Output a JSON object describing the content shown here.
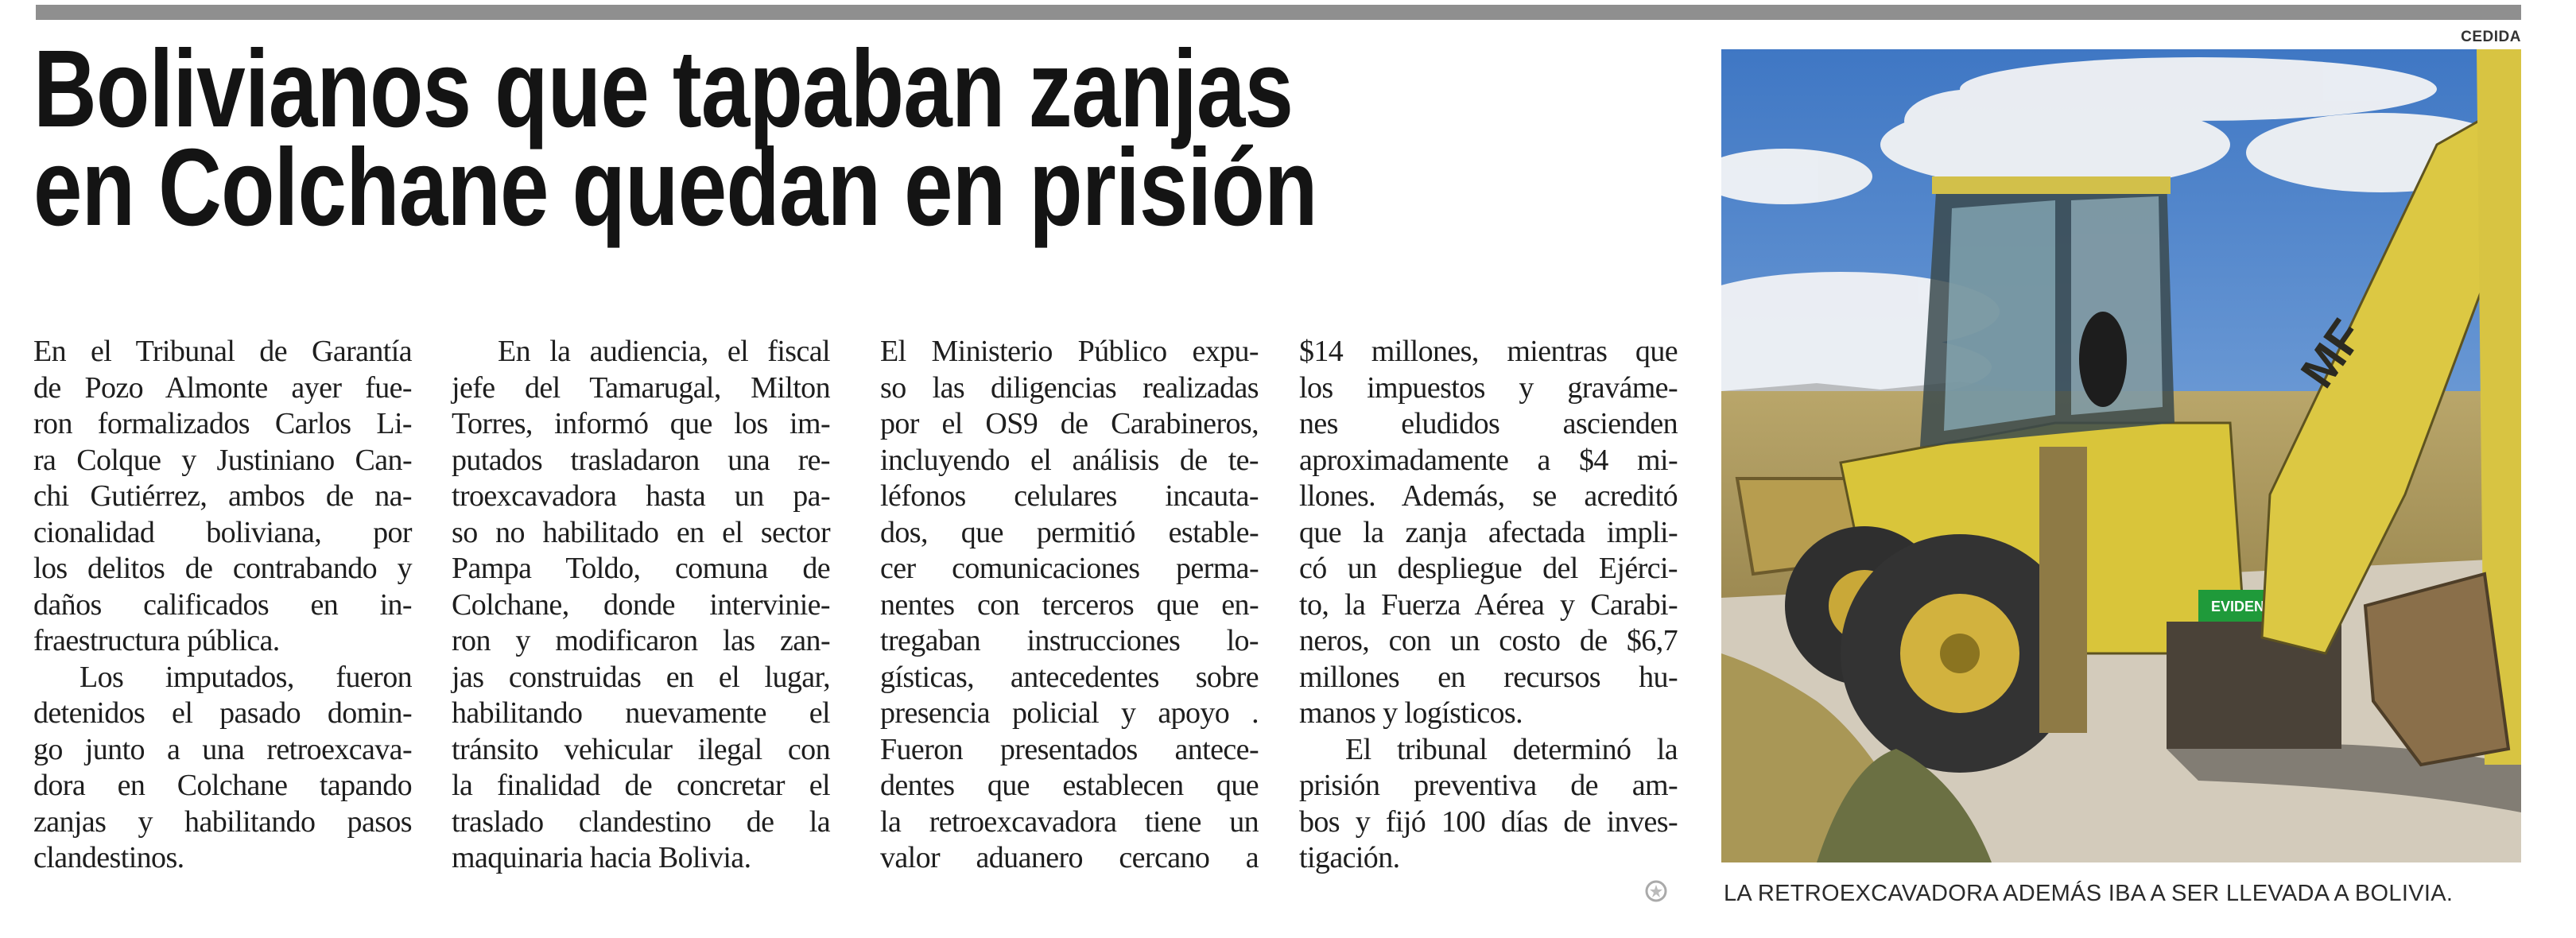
{
  "headline": {
    "line1": "Bolivianos que tapaban zanjas",
    "line2": "en Colchane quedan en prisión"
  },
  "columns": [
    {
      "lines": [
        {
          "t": "En el Tribunal de Garantía"
        },
        {
          "t": "de Pozo Almonte ayer fue-"
        },
        {
          "t": "ron formalizados Carlos Li-"
        },
        {
          "t": "ra Colque y Justiniano Can-"
        },
        {
          "t": "chi Gutiérrez, ambos de na-"
        },
        {
          "t": "cionalidad boliviana, por"
        },
        {
          "t": "los delitos de contrabando y"
        },
        {
          "t": "daños calificados en in-"
        },
        {
          "t": "fraestructura pública.",
          "last": true
        },
        {
          "t": "Los imputados, fueron",
          "indent": true
        },
        {
          "t": "detenidos el pasado domin-"
        },
        {
          "t": "go junto a una retroexcava-"
        },
        {
          "t": "dora en Colchane tapando"
        },
        {
          "t": "zanjas y habilitando pasos"
        },
        {
          "t": "clandestinos.",
          "last": true
        }
      ]
    },
    {
      "lines": [
        {
          "t": "En la audiencia, el fiscal",
          "indent": true
        },
        {
          "t": "jefe del Tamarugal, Milton"
        },
        {
          "t": "Torres, informó que los im-"
        },
        {
          "t": "putados trasladaron una re-"
        },
        {
          "t": "troexcavadora hasta un pa-"
        },
        {
          "t": "so no habilitado en el sector"
        },
        {
          "t": "Pampa Toldo, comuna de"
        },
        {
          "t": "Colchane, donde intervinie-"
        },
        {
          "t": "ron y modificaron las zan-"
        },
        {
          "t": "jas construidas en el lugar,"
        },
        {
          "t": "habilitando nuevamente el"
        },
        {
          "t": "tránsito vehicular ilegal con"
        },
        {
          "t": "la finalidad de concretar el"
        },
        {
          "t": "traslado clandestino de la"
        },
        {
          "t": "maquinaria hacia Bolivia.",
          "last": true
        }
      ]
    },
    {
      "lines": [
        {
          "t": "El Ministerio Público expu-"
        },
        {
          "t": "so las diligencias realizadas"
        },
        {
          "t": "por el OS9 de Carabineros,"
        },
        {
          "t": "incluyendo el análisis de te-"
        },
        {
          "t": "léfonos celulares incauta-"
        },
        {
          "t": "dos, que permitió estable-"
        },
        {
          "t": "cer comunicaciones perma-"
        },
        {
          "t": "nentes con terceros que en-"
        },
        {
          "t": "tregaban instrucciones lo-"
        },
        {
          "t": "gísticas, antecedentes sobre"
        },
        {
          "t": "presencia policial y apoyo ."
        },
        {
          "t": "Fueron presentados antece-"
        },
        {
          "t": "dentes que establecen que"
        },
        {
          "t": "la retroexcavadora tiene un"
        },
        {
          "t": "valor aduanero cercano a"
        }
      ]
    },
    {
      "lines": [
        {
          "t": "$14 millones, mientras que"
        },
        {
          "t": "los impuestos y graváme-"
        },
        {
          "t": "nes eludidos ascienden"
        },
        {
          "t": "aproximadamente a $4 mi-"
        },
        {
          "t": "llones. Además, se acreditó"
        },
        {
          "t": "que la zanja afectada impli-"
        },
        {
          "t": "có un despliegue del Ejérci-"
        },
        {
          "t": "to, la Fuerza Aérea y Carabi-"
        },
        {
          "t": "neros, con un costo de $6,7"
        },
        {
          "t": "millones en recursos hu-"
        },
        {
          "t": "manos y logísticos.",
          "last": true
        },
        {
          "t": "El tribunal determinó la",
          "indent": true
        },
        {
          "t": "prisión preventiva de am-"
        },
        {
          "t": "bos y fijó 100 días de inves-"
        },
        {
          "t": "tigación.",
          "last": true
        }
      ]
    }
  ],
  "photo": {
    "credit": "CEDIDA",
    "caption": "LA RETROEXCAVADORA ADEMÁS IBA A SER LLEVADA A BOLIVIA.",
    "sticker_text": "EVIDENCIA",
    "machine_logo": "MF"
  },
  "end_mark_icon": "newspaper-end-mark-icon",
  "colors": {
    "rule": "#8f8f8f",
    "text": "#1e1e1e",
    "machine_yellow": "#d9c53a",
    "sticker_green": "#1f9a3a"
  }
}
